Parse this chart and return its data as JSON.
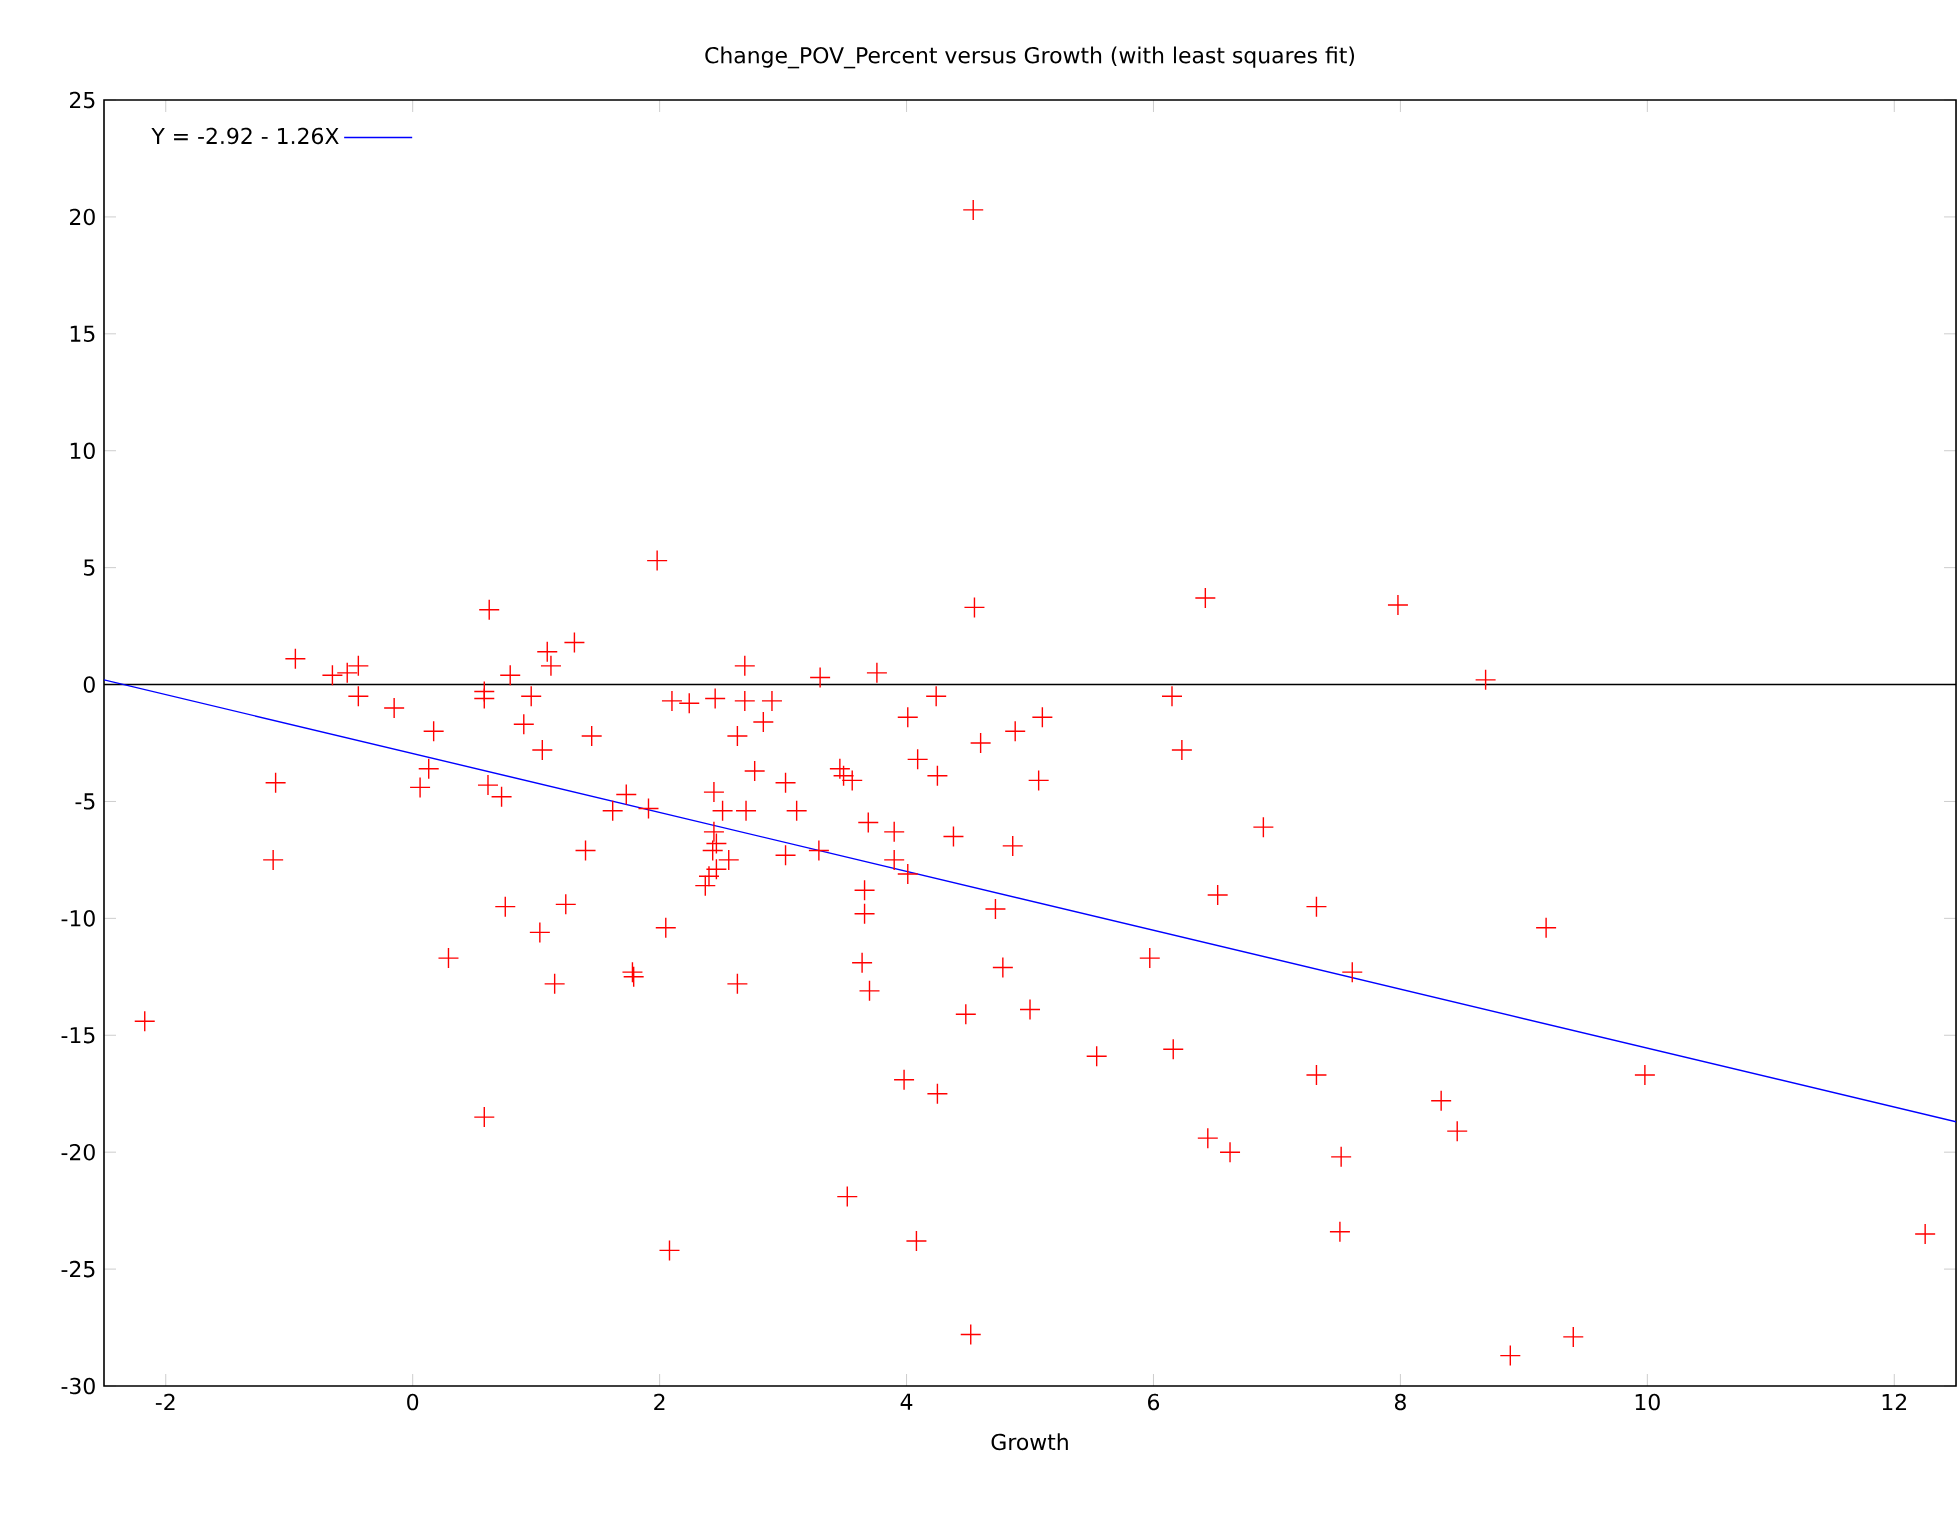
{
  "chart_data": {
    "type": "scatter",
    "title": "Change_POV_Percent versus Growth (with least squares fit)",
    "xlabel": "Growth",
    "xlim": [
      -2.5,
      12.5
    ],
    "ylim": [
      -30,
      25
    ],
    "xticks": [
      -2,
      0,
      2,
      4,
      6,
      8,
      10,
      12
    ],
    "yticks": [
      -30,
      -25,
      -20,
      -15,
      -10,
      -5,
      0,
      5,
      10,
      15,
      20,
      25
    ],
    "grid": false,
    "legend": "top left",
    "ref_lines": [
      {
        "axis": "y",
        "value": 0,
        "color": "#000000"
      }
    ],
    "series": [
      {
        "color": "#ff0000",
        "marker": "cross",
        "x": [
          -2.17,
          -1.11,
          -1.13,
          -0.95,
          -0.65,
          -0.53,
          -0.44,
          -0.44,
          -0.15,
          0.17,
          0.13,
          0.06,
          0.62,
          0.58,
          0.58,
          0.79,
          0.96,
          0.9,
          1.05,
          1.09,
          1.12,
          1.31,
          1.45,
          0.61,
          0.72,
          1.73,
          1.62,
          1.91,
          1.4,
          0.75,
          1.24,
          1.03,
          2.05,
          0.29,
          1.15,
          1.78,
          1.79,
          2.63,
          0.58,
          2.08,
          1.98,
          2.1,
          2.24,
          2.45,
          2.69,
          2.69,
          2.91,
          2.84,
          2.63,
          2.77,
          2.44,
          2.51,
          2.7,
          3.02,
          3.11,
          2.44,
          2.46,
          2.43,
          2.56,
          2.46,
          2.4,
          2.37,
          3.02,
          3.29,
          3.3,
          3.76,
          3.49,
          3.46,
          3.56,
          3.69,
          3.9,
          3.9,
          4.01,
          3.66,
          3.66,
          3.64,
          3.7,
          3.52,
          3.98,
          4.08,
          4.52,
          4.54,
          4.55,
          4.24,
          4.01,
          4.09,
          4.25,
          4.6,
          4.88,
          5.1,
          5.07,
          4.38,
          4.86,
          4.72,
          4.78,
          4.48,
          5.0,
          4.25,
          5.54,
          5.97,
          6.15,
          6.23,
          6.42,
          7.98,
          8.69,
          6.89,
          6.52,
          7.32,
          9.18,
          7.61,
          6.16,
          7.32,
          9.98,
          8.33,
          8.46,
          6.44,
          6.62,
          7.52,
          7.51,
          12.25,
          8.89,
          9.4
        ],
        "values": [
          -14.4,
          -4.2,
          -7.5,
          1.1,
          0.4,
          0.5,
          0.8,
          -0.5,
          -1.0,
          -2.0,
          -3.6,
          -4.4,
          3.2,
          -0.3,
          -0.6,
          0.4,
          -0.5,
          -1.7,
          -2.8,
          1.4,
          0.8,
          1.8,
          -2.2,
          -4.3,
          -4.8,
          -4.7,
          -5.4,
          -5.3,
          -7.1,
          -9.5,
          -9.4,
          -10.6,
          -10.4,
          -11.7,
          -12.8,
          -12.3,
          -12.5,
          -12.8,
          -18.5,
          -24.2,
          5.3,
          -0.7,
          -0.8,
          -0.6,
          -0.7,
          0.8,
          -0.7,
          -1.6,
          -2.2,
          -3.7,
          -4.6,
          -5.4,
          -5.4,
          -4.2,
          -5.4,
          -6.3,
          -6.8,
          -7.1,
          -7.5,
          -7.9,
          -8.2,
          -8.6,
          -7.3,
          -7.1,
          0.3,
          0.5,
          -3.9,
          -3.6,
          -4.1,
          -5.9,
          -6.3,
          -7.5,
          -8.1,
          -8.8,
          -9.8,
          -11.9,
          -13.1,
          -21.9,
          -16.9,
          -23.8,
          -27.8,
          20.3,
          3.3,
          -0.5,
          -1.4,
          -3.2,
          -3.9,
          -2.5,
          -2.0,
          -1.4,
          -4.1,
          -6.5,
          -6.9,
          -9.6,
          -12.1,
          -14.1,
          -13.9,
          -17.5,
          -15.9,
          -11.7,
          -0.5,
          -2.8,
          3.7,
          3.4,
          0.2,
          -6.1,
          -9.0,
          -9.5,
          -10.4,
          -12.3,
          -15.6,
          -16.7,
          -16.7,
          -17.8,
          -19.1,
          -19.4,
          -20.0,
          -20.2,
          -23.4,
          -23.5,
          -28.7,
          -27.9
        ]
      },
      {
        "type": "line",
        "name": "Y = -2.92 - 1.26X",
        "color": "#0000ff",
        "marker": "none",
        "x": [
          -2.5,
          12.5
        ],
        "values": [
          0.2,
          -18.7
        ]
      }
    ]
  }
}
